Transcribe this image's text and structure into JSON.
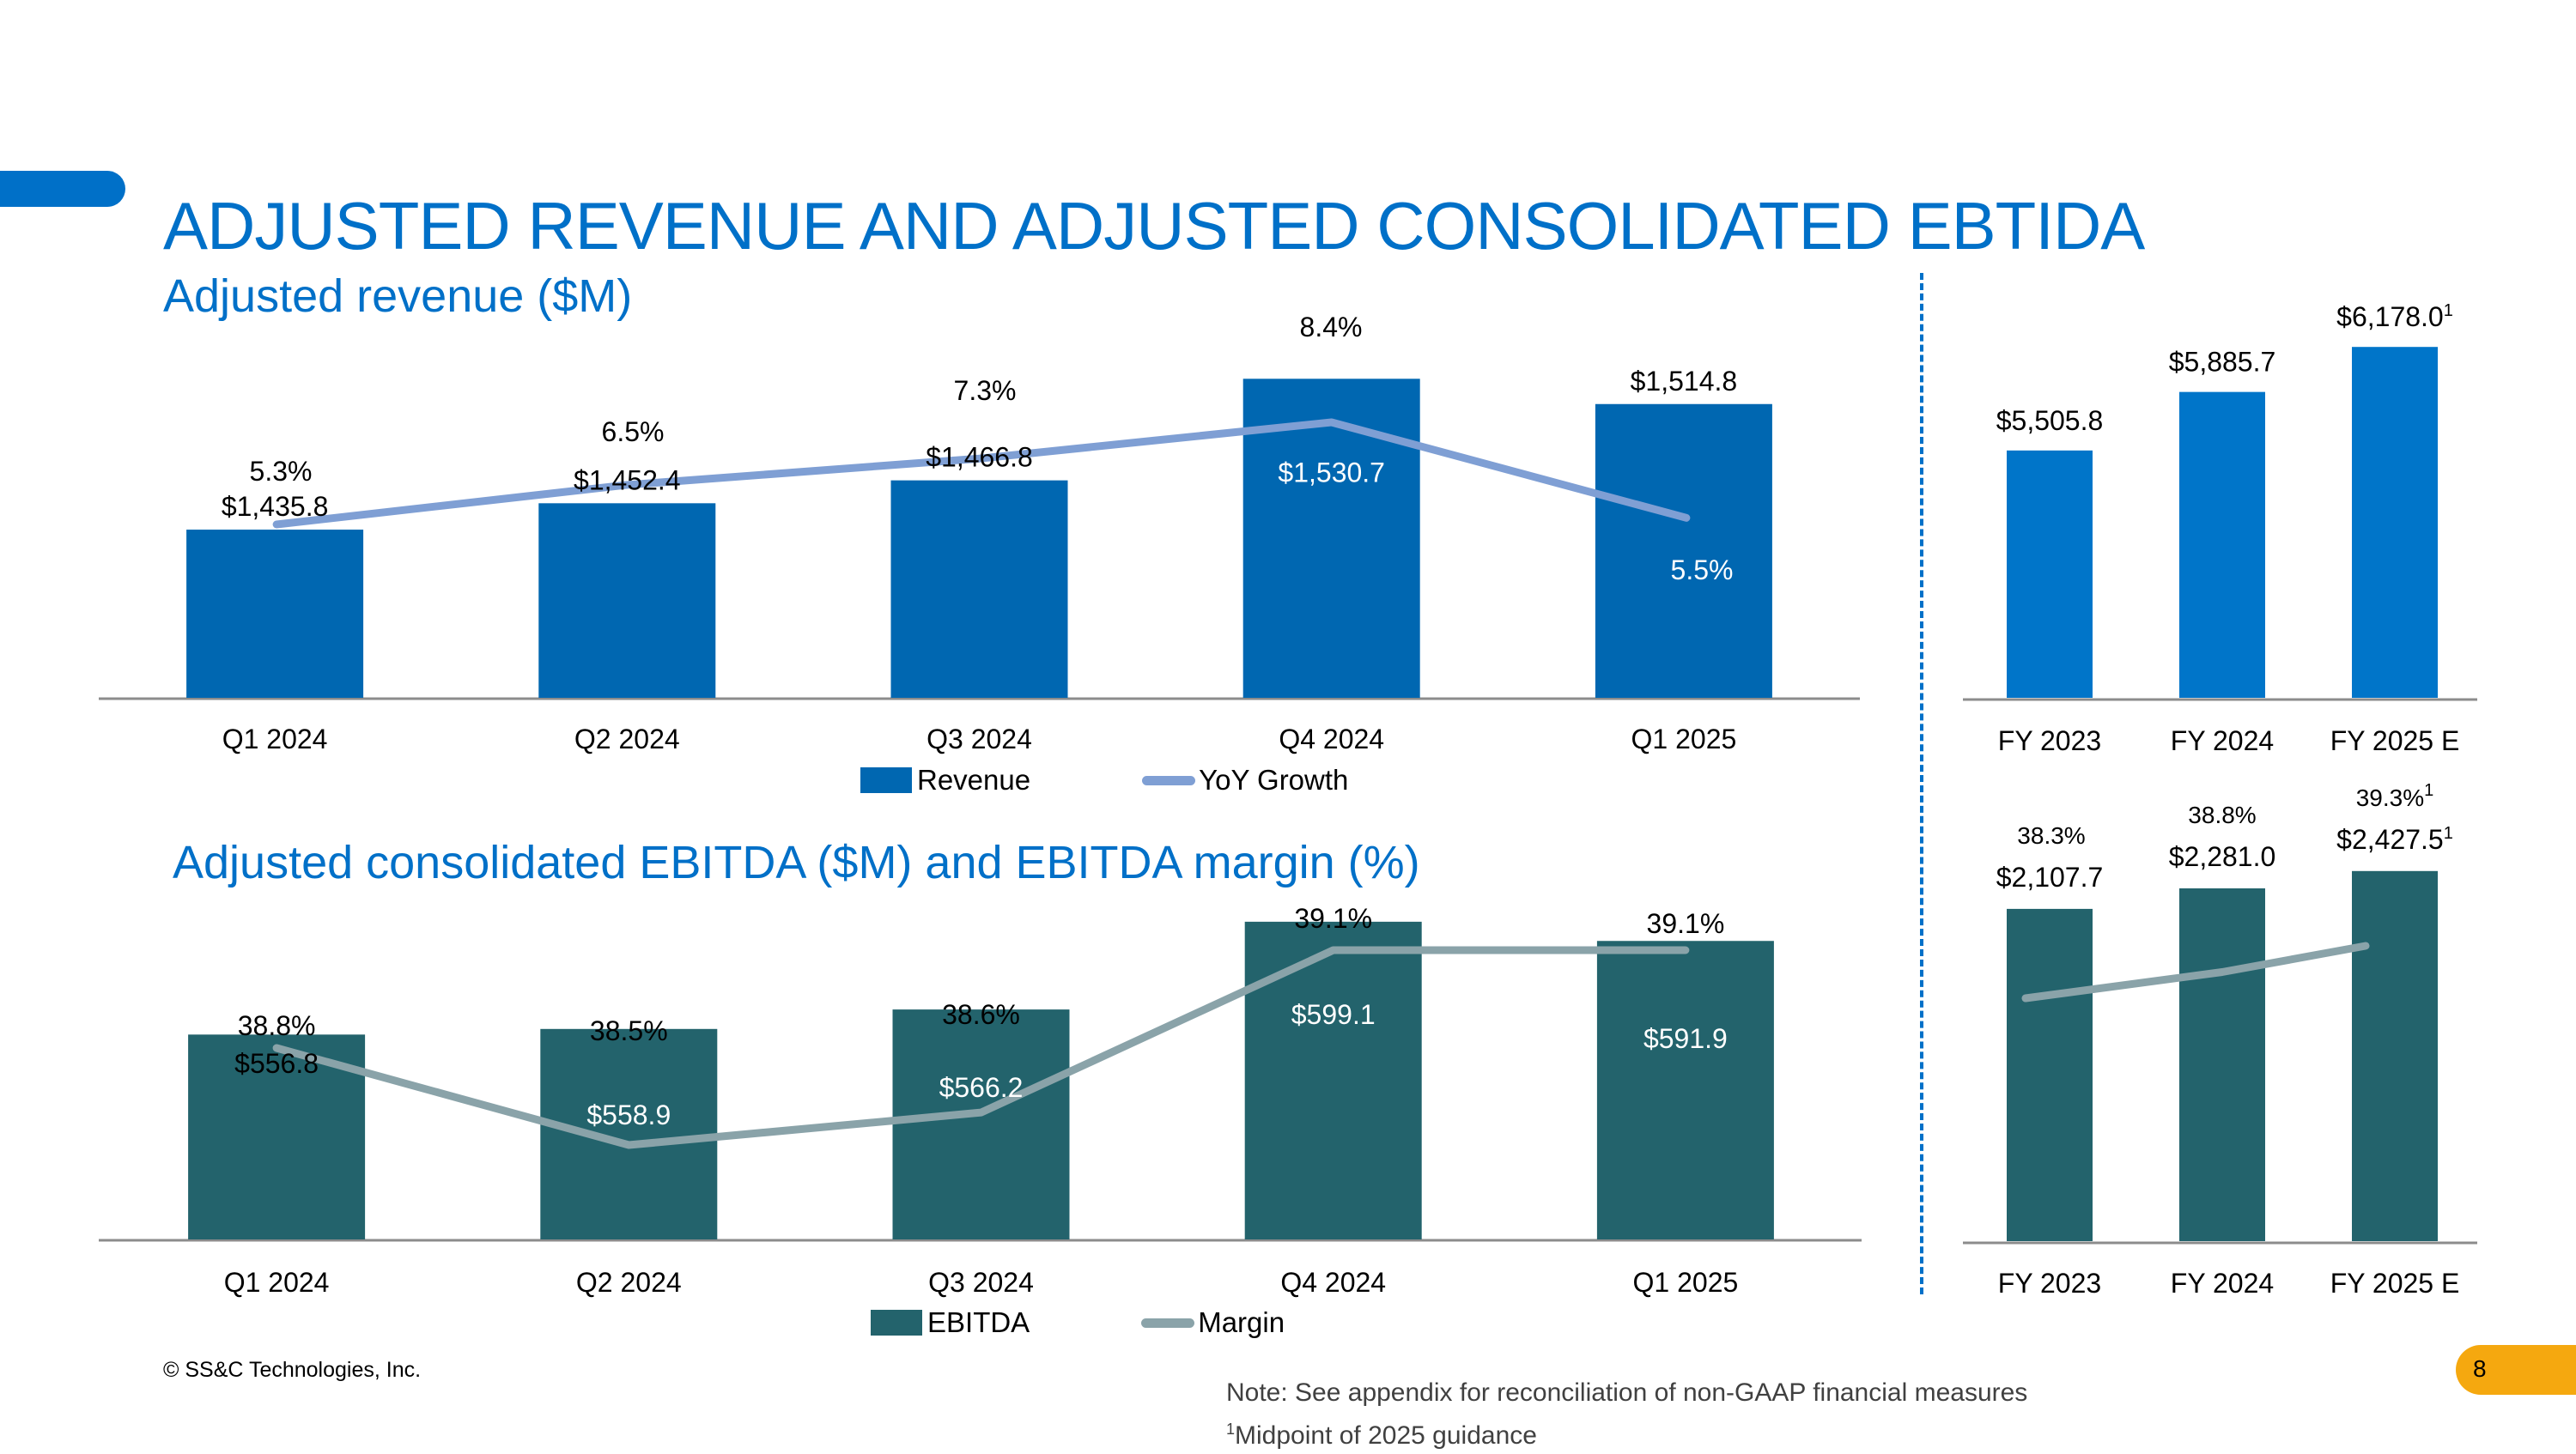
{
  "page": {
    "title": "ADJUSTED REVENUE AND ADJUSTED CONSOLIDATED EBTIDA",
    "copyright": "© SS&C Technologies, Inc.",
    "note": "Note: See appendix for reconciliation of non-GAAP financial measures",
    "footnote_marker": "1",
    "footnote_text": "Midpoint of 2025 guidance",
    "page_number": "8",
    "colors": {
      "accent": "#0070C8",
      "revenue_bar": "#0067B1",
      "revenue_annual_bar": "#0075C9",
      "growth_line": "#7F9FD4",
      "ebitda_bar": "#23636C",
      "margin_line": "#8AA3A9",
      "page_badge": "#F5A80F"
    }
  },
  "chart_data": [
    {
      "id": "quarterly_revenue",
      "type": "bar",
      "title": "Adjusted revenue ($M)",
      "categories": [
        "Q1 2024",
        "Q2 2024",
        "Q3 2024",
        "Q4 2024",
        "Q1 2025"
      ],
      "series": [
        {
          "name": "Revenue",
          "kind": "bar",
          "values": [
            1435.8,
            1452.4,
            1466.8,
            1530.7,
            1514.8
          ],
          "labels": [
            "$1,435.8",
            "$1,452.4",
            "$1,466.8",
            "$1,530.7",
            "$1,514.8"
          ]
        },
        {
          "name": "YoY Growth",
          "kind": "line",
          "values": [
            5.3,
            6.5,
            7.3,
            8.4,
            5.5
          ],
          "labels": [
            "5.3%",
            "6.5%",
            "7.3%",
            "8.4%",
            "5.5%"
          ]
        }
      ],
      "legend": [
        "Revenue",
        "YoY Growth"
      ],
      "legend_position": "bottom",
      "xlabel": "",
      "ylabel": "",
      "grid": false
    },
    {
      "id": "annual_revenue",
      "type": "bar",
      "categories": [
        "FY 2023",
        "FY 2024",
        "FY 2025 E"
      ],
      "series": [
        {
          "name": "Revenue",
          "kind": "bar",
          "values": [
            5505.8,
            5885.7,
            6178.0
          ],
          "labels": [
            "$5,505.8",
            "$5,885.7",
            "$6,178.0"
          ],
          "footnotes": [
            "",
            "",
            "1"
          ]
        }
      ],
      "grid": false
    },
    {
      "id": "quarterly_ebitda",
      "type": "bar",
      "title": "Adjusted consolidated EBITDA ($M) and EBITDA margin (%)",
      "categories": [
        "Q1 2024",
        "Q2 2024",
        "Q3 2024",
        "Q4 2024",
        "Q1 2025"
      ],
      "series": [
        {
          "name": "EBITDA",
          "kind": "bar",
          "values": [
            556.8,
            558.9,
            566.2,
            599.1,
            591.9
          ],
          "labels": [
            "$556.8",
            "$558.9",
            "$566.2",
            "$599.1",
            "$591.9"
          ]
        },
        {
          "name": "Margin",
          "kind": "line",
          "values": [
            38.8,
            38.5,
            38.6,
            39.1,
            39.1
          ],
          "labels": [
            "38.8%",
            "38.5%",
            "38.6%",
            "39.1%",
            "39.1%"
          ]
        }
      ],
      "legend": [
        "EBITDA",
        "Margin"
      ],
      "legend_position": "bottom",
      "grid": false
    },
    {
      "id": "annual_ebitda",
      "type": "bar",
      "categories": [
        "FY 2023",
        "FY 2024",
        "FY 2025 E"
      ],
      "series": [
        {
          "name": "EBITDA",
          "kind": "bar",
          "values": [
            2107.7,
            2281.0,
            2427.5
          ],
          "labels": [
            "$2,107.7",
            "$2,281.0",
            "$2,427.5"
          ],
          "footnotes": [
            "",
            "",
            "1"
          ]
        },
        {
          "name": "Margin",
          "kind": "line",
          "values": [
            38.3,
            38.8,
            39.3
          ],
          "labels": [
            "38.3%",
            "38.8%",
            "39.3%"
          ],
          "footnotes": [
            "",
            "",
            "1"
          ]
        }
      ],
      "grid": false
    }
  ]
}
